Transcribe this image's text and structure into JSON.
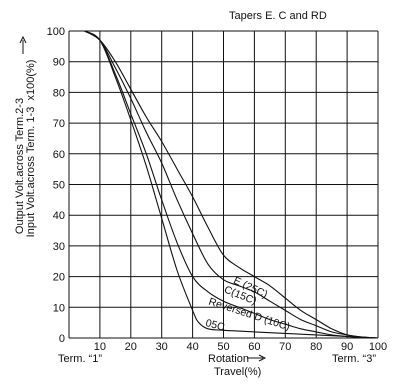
{
  "chart_data": {
    "type": "line",
    "title": "Tapers E. C and RD",
    "ylabel_line1": "Output Volt.across Term.2-3",
    "ylabel_line2": "Input Volt.across Term.  1-3",
    "ylabel_suffix": "x100(%)",
    "xlabel_line1": "Rotation",
    "xlabel_line2": "Travel(%)",
    "x_end_left": "Term. “1”",
    "x_end_right": "Term. “3”",
    "x_ticks": [
      "10",
      "20",
      "30",
      "40",
      "50",
      "60",
      "70",
      "80",
      "90",
      "100"
    ],
    "y_ticks": [
      "0",
      "10",
      "20",
      "30",
      "40",
      "50",
      "60",
      "70",
      "80",
      "90",
      "100"
    ],
    "xlim": [
      0,
      100
    ],
    "ylim": [
      0,
      100
    ],
    "grid": true,
    "series": [
      {
        "name": "E (25C)",
        "x": [
          5,
          10,
          15,
          20,
          25,
          30,
          35,
          40,
          45,
          50,
          55,
          60,
          65,
          70,
          75,
          80,
          85,
          90,
          95,
          100
        ],
        "y": [
          100,
          97,
          90,
          81,
          72,
          64,
          55,
          46,
          36,
          27,
          23,
          20,
          17,
          13,
          9,
          6,
          3,
          1,
          0.3,
          0
        ]
      },
      {
        "name": "C(15C)",
        "x": [
          5,
          10,
          15,
          20,
          25,
          30,
          35,
          40,
          45,
          50,
          55,
          60,
          65,
          70,
          75,
          80,
          85,
          90,
          95,
          100
        ],
        "y": [
          100,
          97,
          88,
          78,
          67,
          57,
          45,
          34,
          24,
          19,
          17,
          15,
          12,
          9,
          6,
          4,
          2,
          1,
          0.3,
          0
        ]
      },
      {
        "name": "Reversed D (10C)",
        "x": [
          5,
          10,
          15,
          20,
          25,
          30,
          35,
          40,
          45,
          50,
          55,
          60,
          65,
          70,
          75,
          80,
          85,
          90,
          95,
          100
        ],
        "y": [
          100,
          97,
          86,
          73,
          60,
          45,
          31,
          20,
          15,
          12,
          10,
          8,
          6,
          4.5,
          3,
          2,
          1,
          0.5,
          0.2,
          0
        ]
      },
      {
        "name": "05C",
        "x": [
          5,
          10,
          15,
          20,
          25,
          30,
          35,
          40,
          42,
          45,
          50,
          60,
          70,
          80,
          90,
          100
        ],
        "y": [
          100,
          97,
          85,
          71,
          56,
          39,
          22,
          9,
          5,
          3,
          2.5,
          2,
          1.5,
          1,
          0.5,
          0
        ]
      }
    ],
    "curve_labels": [
      {
        "text": "E (25C)",
        "series": 0,
        "x": 53,
        "y": 18,
        "angle": 25
      },
      {
        "text": "C(15C)",
        "series": 1,
        "x": 50,
        "y": 15,
        "angle": 22
      },
      {
        "text": "Reversed  D (10C)",
        "series": 2,
        "x": 45,
        "y": 11,
        "angle": 18
      },
      {
        "text": "05C",
        "series": 3,
        "x": 44,
        "y": 4,
        "angle": 15
      }
    ]
  }
}
